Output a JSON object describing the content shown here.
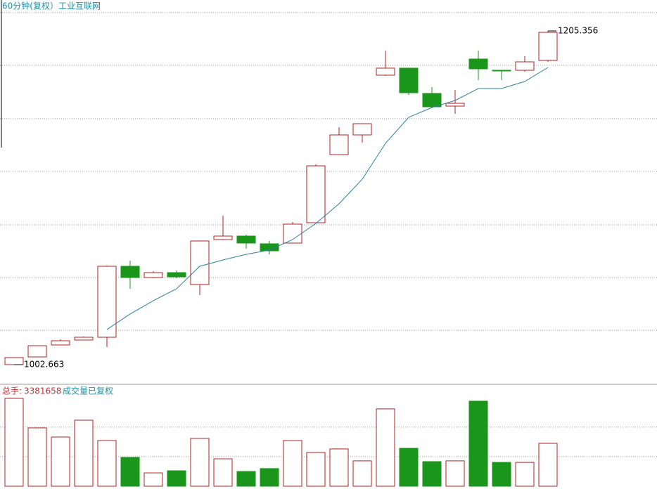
{
  "chart_data": [
    {
      "type": "candlestick",
      "title": "60分钟(复权）工业互联网",
      "open": [
        1002.66,
        1007.36,
        1014.61,
        1017.6,
        1019.3,
        1062.4,
        1055.58,
        1058.56,
        1051.31,
        1078.62,
        1080.75,
        1076.06,
        1076.49,
        1088.86,
        1130.25,
        1142.2,
        1178.47,
        1182.74,
        1167.38,
        1159.69,
        1188.29,
        1181.46,
        1181.46,
        1187.43
      ],
      "high": [
        1006.93,
        1014.18,
        1018.02,
        1019.73,
        1062.83,
        1065.82,
        1059.42,
        1059.84,
        1077.77,
        1093.13,
        1081.61,
        1077.77,
        1089.29,
        1124.28,
        1146.89,
        1149.03,
        1193.41,
        1182.74,
        1171.22,
        1169.51,
        1193.41,
        1181.46,
        1189.99,
        1205.356
      ],
      "low": [
        1002.663,
        1007.36,
        1014.61,
        1017.6,
        1013.33,
        1048.75,
        1055.15,
        1055.15,
        1044.91,
        1078.19,
        1073.07,
        1069.66,
        1076.49,
        1088.86,
        1130.25,
        1137.51,
        1178.04,
        1166.52,
        1158.42,
        1155.0,
        1175.48,
        1175.48,
        1180.61,
        1186.58
      ],
      "close": [
        1006.93,
        1014.18,
        1017.17,
        1019.3,
        1062.4,
        1055.58,
        1058.56,
        1056.0,
        1077.77,
        1080.75,
        1076.49,
        1071.79,
        1088.01,
        1123.42,
        1142.2,
        1149.03,
        1182.74,
        1167.8,
        1159.27,
        1161.4,
        1182.31,
        1181.03,
        1186.58,
        1204.5
      ],
      "ma": [
        null,
        null,
        null,
        null,
        1023.96,
        1033.39,
        1041.5,
        1048.75,
        1062.4,
        1066.25,
        1069.66,
        1072.22,
        1078.62,
        1088.43,
        1100.38,
        1115.32,
        1137.08,
        1152.87,
        1158.84,
        1163.11,
        1170.36,
        1170.36,
        1174.63,
        1183.17
      ],
      "up_color": "#b22222",
      "down_color": "#1a961a",
      "ma_color": "#2b7fa3",
      "ylim": [
        990.71,
        1220.72
      ],
      "yticks": [
        1023.57,
        1055.58,
        1087.58,
        1120.01,
        1152.02,
        1184.45,
        1216.45
      ],
      "grid": true
    },
    {
      "type": "bar",
      "title": "总手:",
      "subtitle": "成交量已复权",
      "values": [
        6930000,
        4600000,
        3880000,
        5210000,
        3600000,
        2270000,
        1050000,
        1220000,
        3770000,
        2160000,
        1160000,
        1390000,
        3600000,
        2660000,
        2940000,
        2000000,
        6100000,
        2990000,
        1940000,
        2000000,
        6710000,
        1880000,
        1880000,
        3381658
      ],
      "ylim": [
        0,
        7040000
      ],
      "yticks": [
        2330000,
        4660000
      ],
      "grid": true
    }
  ]
}
